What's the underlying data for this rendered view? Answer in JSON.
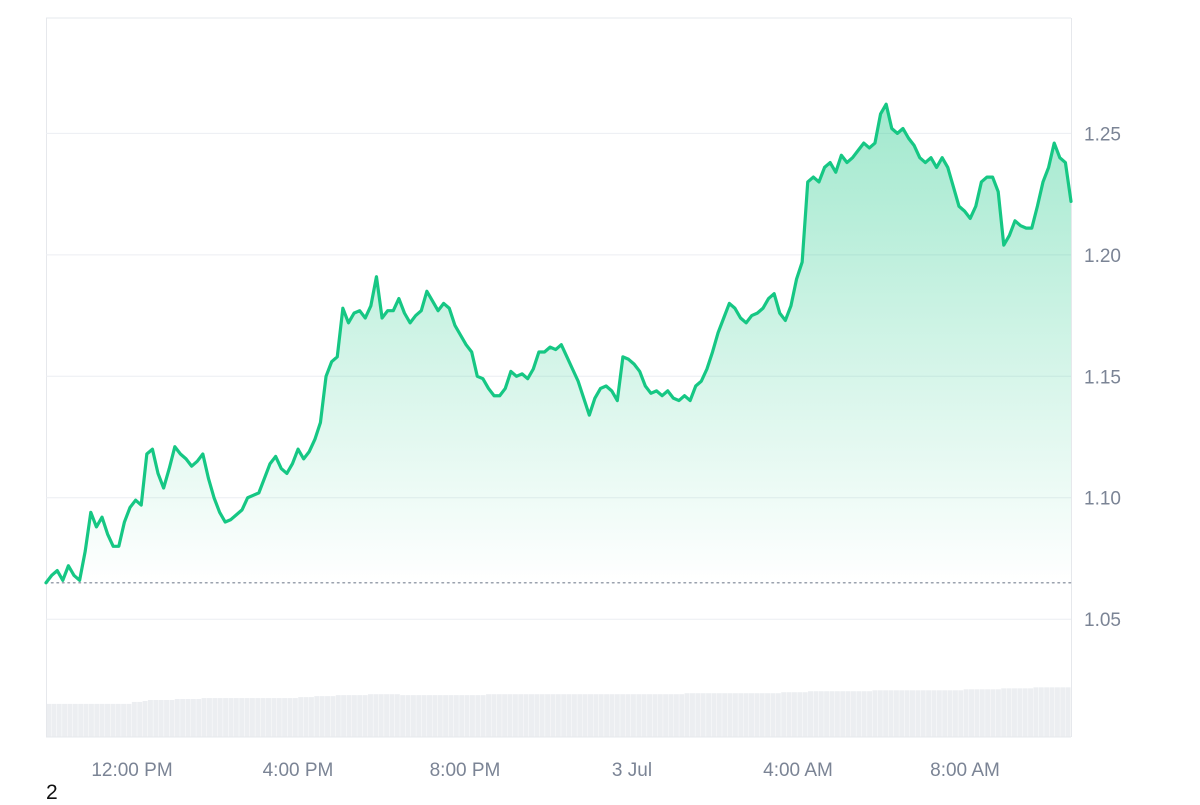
{
  "footnote": "2",
  "colors": {
    "line": "#16c784",
    "area_top": "#16c784",
    "grid": "#eceef2",
    "frame": "#e6e8ec",
    "baseline_dots": "#9aa1ad",
    "volume": "#e6e8ec",
    "axis_text": "#7b8495"
  },
  "chart_data": {
    "type": "area",
    "title": "",
    "xlabel": "",
    "ylabel": "",
    "y_axis_position": "right",
    "ylim": [
      1.0015,
      1.2975
    ],
    "y_ticks": [
      1.05,
      1.1,
      1.15,
      1.2,
      1.25
    ],
    "y_tick_labels": [
      "1.05",
      "1.10",
      "1.15",
      "1.20",
      "1.25"
    ],
    "x_tick_labels": [
      "12:00 PM",
      "4:00 PM",
      "8:00 PM",
      "3 Jul",
      "4:00 AM",
      "8:00 AM"
    ],
    "grid": true,
    "reference_line": 1.065,
    "series": [
      {
        "values": [
          1.065,
          1.068,
          1.07,
          1.066,
          1.072,
          1.068,
          1.066,
          1.078,
          1.094,
          1.088,
          1.092,
          1.085,
          1.08,
          1.08,
          1.09,
          1.096,
          1.099,
          1.097,
          1.118,
          1.12,
          1.11,
          1.104,
          1.112,
          1.121,
          1.118,
          1.116,
          1.113,
          1.115,
          1.118,
          1.108,
          1.1,
          1.094,
          1.09,
          1.091,
          1.093,
          1.095,
          1.1,
          1.101,
          1.102,
          1.108,
          1.114,
          1.117,
          1.112,
          1.11,
          1.114,
          1.12,
          1.116,
          1.119,
          1.124,
          1.131,
          1.15,
          1.156,
          1.158,
          1.178,
          1.172,
          1.176,
          1.177,
          1.174,
          1.179,
          1.191,
          1.174,
          1.177,
          1.177,
          1.182,
          1.176,
          1.172,
          1.175,
          1.177,
          1.185,
          1.181,
          1.177,
          1.18,
          1.178,
          1.171,
          1.167,
          1.163,
          1.16,
          1.15,
          1.149,
          1.145,
          1.142,
          1.142,
          1.145,
          1.152,
          1.15,
          1.151,
          1.149,
          1.153,
          1.16,
          1.16,
          1.162,
          1.161,
          1.163,
          1.158,
          1.153,
          1.148,
          1.141,
          1.134,
          1.141,
          1.145,
          1.146,
          1.144,
          1.14,
          1.158,
          1.157,
          1.155,
          1.152,
          1.146,
          1.143,
          1.144,
          1.142,
          1.144,
          1.141,
          1.14,
          1.142,
          1.14,
          1.146,
          1.148,
          1.153,
          1.16,
          1.168,
          1.174,
          1.18,
          1.178,
          1.174,
          1.172,
          1.175,
          1.176,
          1.178,
          1.182,
          1.184,
          1.176,
          1.173,
          1.179,
          1.19,
          1.197,
          1.23,
          1.232,
          1.23,
          1.236,
          1.238,
          1.234,
          1.241,
          1.238,
          1.24,
          1.243,
          1.246,
          1.244,
          1.246,
          1.258,
          1.262,
          1.252,
          1.25,
          1.252,
          1.248,
          1.245,
          1.24,
          1.238,
          1.24,
          1.236,
          1.24,
          1.236,
          1.228,
          1.22,
          1.218,
          1.215,
          1.22,
          1.23,
          1.232,
          1.232,
          1.226,
          1.204,
          1.208,
          1.214,
          1.212,
          1.211,
          1.211,
          1.22,
          1.23,
          1.236,
          1.246,
          1.24,
          1.238,
          1.222
        ]
      }
    ],
    "volume": [
      0.34,
      0.34,
      0.34,
      0.34,
      0.34,
      0.34,
      0.34,
      0.34,
      0.34,
      0.34,
      0.34,
      0.34,
      0.34,
      0.34,
      0.34,
      0.34,
      0.36,
      0.36,
      0.37,
      0.38,
      0.38,
      0.38,
      0.38,
      0.38,
      0.39,
      0.39,
      0.39,
      0.39,
      0.39,
      0.4,
      0.4,
      0.4,
      0.4,
      0.4,
      0.4,
      0.4,
      0.4,
      0.4,
      0.4,
      0.4,
      0.4,
      0.4,
      0.4,
      0.4,
      0.4,
      0.4,
      0.4,
      0.41,
      0.41,
      0.41,
      0.42,
      0.42,
      0.42,
      0.42,
      0.43,
      0.43,
      0.43,
      0.43,
      0.43,
      0.43,
      0.44,
      0.44,
      0.44,
      0.44,
      0.44,
      0.44,
      0.43,
      0.43,
      0.43,
      0.43,
      0.43,
      0.43,
      0.43,
      0.43,
      0.43,
      0.43,
      0.43,
      0.43,
      0.43,
      0.43,
      0.43,
      0.43,
      0.44,
      0.44,
      0.44,
      0.44,
      0.44,
      0.44,
      0.44,
      0.44,
      0.44,
      0.44,
      0.44,
      0.44,
      0.44,
      0.44,
      0.44,
      0.44,
      0.44,
      0.44,
      0.44,
      0.44,
      0.44,
      0.44,
      0.44,
      0.44,
      0.44,
      0.44,
      0.44,
      0.44,
      0.44,
      0.44,
      0.44,
      0.44,
      0.44,
      0.44,
      0.44,
      0.44,
      0.44,
      0.45,
      0.45,
      0.45,
      0.45,
      0.45,
      0.45,
      0.45,
      0.45,
      0.45,
      0.45,
      0.45,
      0.45,
      0.45,
      0.45,
      0.45,
      0.45,
      0.45,
      0.45,
      0.46,
      0.46,
      0.46,
      0.46,
      0.46,
      0.47,
      0.47,
      0.47,
      0.47,
      0.47,
      0.47,
      0.47,
      0.47,
      0.47,
      0.47,
      0.47,
      0.47,
      0.48,
      0.48,
      0.48,
      0.48,
      0.48,
      0.48,
      0.48,
      0.48,
      0.48,
      0.48,
      0.48,
      0.48,
      0.48,
      0.48,
      0.48,
      0.48,
      0.48,
      0.49,
      0.49,
      0.49,
      0.49,
      0.49,
      0.49,
      0.49,
      0.5,
      0.5,
      0.5,
      0.5,
      0.5,
      0.5,
      0.51,
      0.51,
      0.51,
      0.51,
      0.51,
      0.51,
      0.51
    ]
  }
}
